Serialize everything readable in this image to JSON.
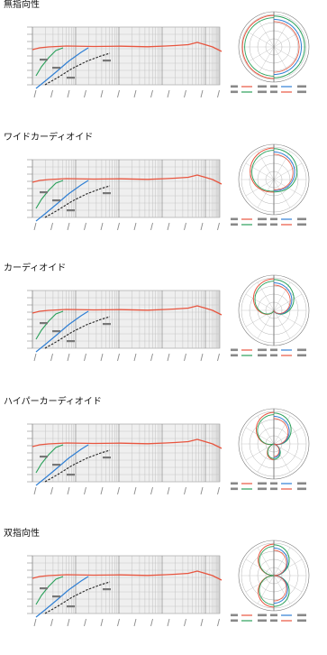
{
  "sections": [
    {
      "title": "無指向性"
    },
    {
      "title": "ワイドカーディオイド"
    },
    {
      "title": "カーディオイド"
    },
    {
      "title": "ハイパーカーディオイド"
    },
    {
      "title": "双指向性"
    }
  ],
  "colors": {
    "response": "#e8553f",
    "blue": "#2f7fd4",
    "green": "#2aa05a",
    "black": "#222222",
    "grid": "#9a9a9a",
    "bg": "#efefef"
  },
  "icons": []
}
